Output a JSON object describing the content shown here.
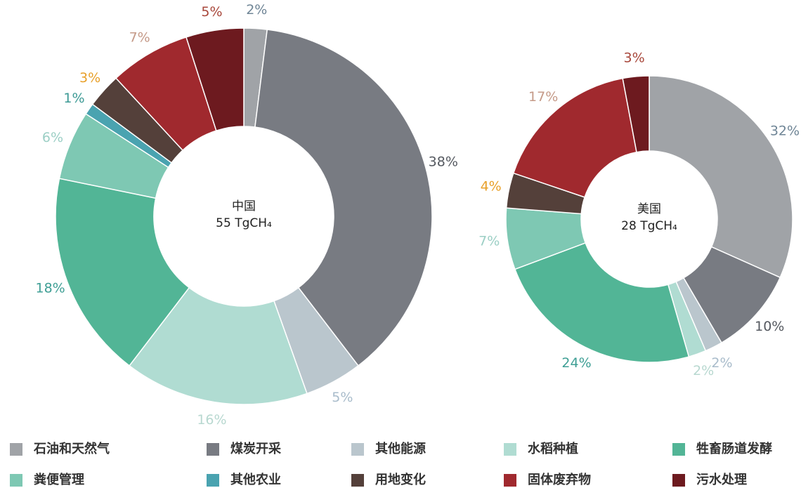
{
  "chart_data": [
    {
      "type": "pie",
      "title": "中国",
      "subtitle": "55 TgCH₄",
      "categories": [
        "石油和天然气",
        "煤炭开采",
        "其他能源",
        "水稻种植",
        "牲畜肠道发酵",
        "粪便管理",
        "其他农业",
        "用地变化",
        "固体废弃物",
        "污水处理"
      ],
      "values": [
        2,
        38,
        5,
        16,
        18,
        6,
        1,
        3,
        7,
        5
      ],
      "value_labels": [
        "2%",
        "38%",
        "5%",
        "16%",
        "18%",
        "6%",
        "1%",
        "3%",
        "7%",
        "5%"
      ],
      "colors": [
        "#a0a3a7",
        "#787b82",
        "#bac6cd",
        "#b0dcd2",
        "#52b596",
        "#7ec8b3",
        "#4aa3b0",
        "#54403a",
        "#a0292e",
        "#6d1a1f"
      ],
      "label_colors": [
        "#6f8596",
        "#555960",
        "#a9bccb",
        "#b8d8d0",
        "#3f9f95",
        "#9ccfc5",
        "#3d9a95",
        "#e8a02a",
        "#c59a88",
        "#a8473b"
      ]
    },
    {
      "type": "pie",
      "title": "美国",
      "subtitle": "28 TgCH₄",
      "categories": [
        "石油和天然气",
        "煤炭开采",
        "其他能源",
        "水稻种植",
        "牲畜肠道发酵",
        "粪便管理",
        "用地变化",
        "固体废弃物",
        "污水处理"
      ],
      "values": [
        32,
        10,
        2,
        2,
        24,
        7,
        4,
        17,
        3
      ],
      "value_labels": [
        "32%",
        "10%",
        "2%",
        "2%",
        "24%",
        "7%",
        "4%",
        "17%",
        "3%"
      ],
      "colors": [
        "#a0a3a7",
        "#787b82",
        "#bac6cd",
        "#b0dcd2",
        "#52b596",
        "#7ec8b3",
        "#54403a",
        "#a0292e",
        "#6d1a1f"
      ],
      "label_colors": [
        "#6f8596",
        "#555960",
        "#a9bccb",
        "#b8d8d0",
        "#3f9f95",
        "#9ccfc5",
        "#e8a02a",
        "#c59a88",
        "#a8473b"
      ]
    }
  ]
}
